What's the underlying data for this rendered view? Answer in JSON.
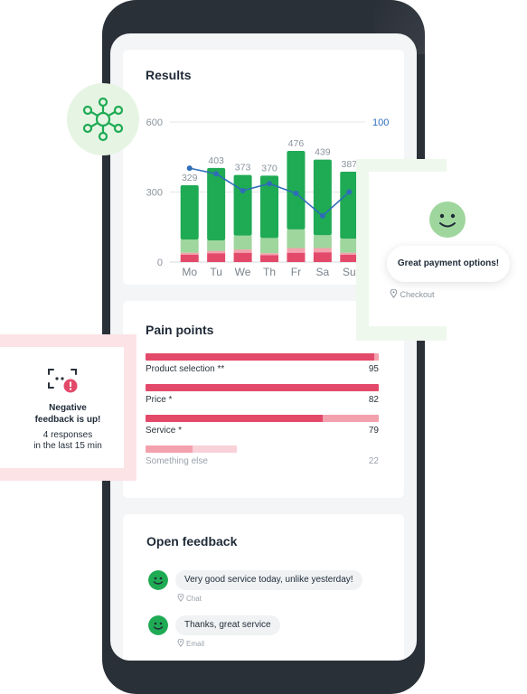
{
  "results": {
    "title": "Results",
    "chart_data": {
      "type": "bar",
      "categories": [
        "Mo",
        "Tu",
        "We",
        "Th",
        "Fr",
        "Sa",
        "Su"
      ],
      "totals": [
        329,
        403,
        373,
        370,
        476,
        439,
        387
      ],
      "series": [
        {
          "name": "",
          "values": [
            32,
            38,
            40,
            30,
            40,
            42,
            32
          ]
        },
        {
          "name": "",
          "values": [
            8,
            10,
            14,
            8,
            20,
            18,
            8
          ]
        },
        {
          "name": "",
          "values": [
            57,
            45,
            59,
            65,
            80,
            55,
            60
          ]
        },
        {
          "name": "",
          "values": [
            232,
            310,
            260,
            267,
            336,
            324,
            287
          ]
        }
      ],
      "line": {
        "values": [
          67,
          63,
          51,
          56,
          49,
          33,
          50
        ],
        "ylim": [
          0,
          100
        ]
      },
      "ylim": [
        0,
        600
      ],
      "yticks": [
        0,
        300,
        600
      ],
      "right_axis_label": "100"
    }
  },
  "pain_points": {
    "title": "Pain points",
    "items": [
      {
        "label": "Product selection **",
        "value": "95",
        "pct": 0.95,
        "bar": 0.98,
        "light": 0.02
      },
      {
        "label": "Price *",
        "value": "82",
        "pct": 0.82,
        "bar": 1.0,
        "light": 0.0
      },
      {
        "label": "Service *",
        "value": "79",
        "pct": 0.79,
        "bar": 0.76,
        "light": 0.24
      },
      {
        "label": "Something else",
        "value": "22",
        "pct": 0.22,
        "bar": 0.2,
        "light": 0.19
      }
    ]
  },
  "open_feedback": {
    "title": "Open feedback",
    "items": [
      {
        "text": "Very good service today, unlike yesterday!",
        "source": "Chat"
      },
      {
        "text": "Thanks, great service",
        "source": "Email"
      }
    ]
  },
  "popup_payment": {
    "text": "Great payment options!",
    "source": "Checkout"
  },
  "popup_negative": {
    "title_line1": "Negative",
    "title_line2": "feedback is up!",
    "sub_line1": "4 responses",
    "sub_line2": "in the last 15 min"
  },
  "colors": {
    "green_dark": "#1faa54",
    "green_light": "#9fd69d",
    "red": "#e34a6a",
    "pink": "#f3a1ad",
    "line_blue": "#2e6db8"
  }
}
